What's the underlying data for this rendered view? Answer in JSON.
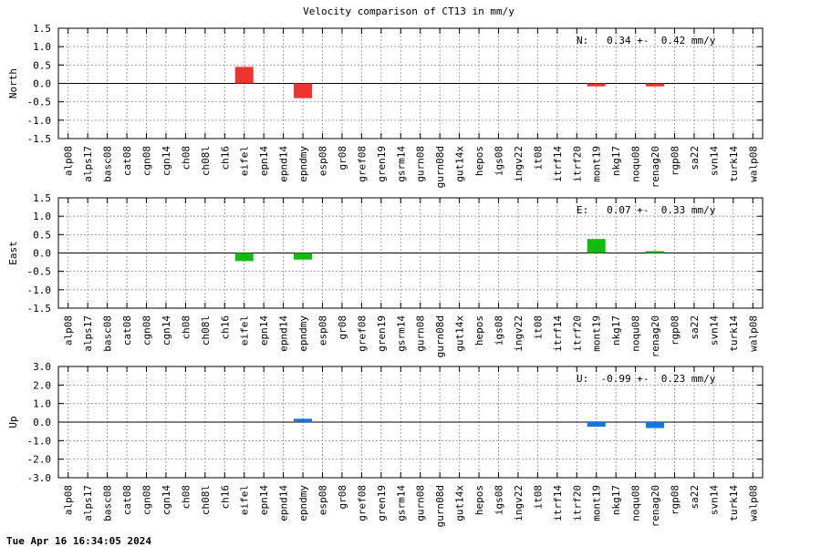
{
  "title": "Velocity comparison of CT13 in mm/y",
  "timestamp": "Tue Apr 16 16:34:05 2024",
  "chart_data": [
    {
      "type": "bar",
      "ylabel": "North",
      "ylim": [
        -1.5,
        1.5
      ],
      "yticks": [
        "1.5",
        "1.0",
        "0.5",
        "0.0",
        "-0.5",
        "-1.0",
        "-1.5"
      ],
      "grid": true,
      "color": "#ee3333",
      "annotation": "N:   0.34 +-  0.42 mm/y",
      "categories": [
        "alp08",
        "alps17",
        "basc08",
        "cat08",
        "cgn08",
        "cgn14",
        "ch08",
        "ch08l",
        "ch16",
        "eifel",
        "epn14",
        "epnd14",
        "epndmy",
        "esp08",
        "gr08",
        "gref08",
        "gren19",
        "gsrm14",
        "gurn08",
        "gurn08d",
        "gut14x",
        "hepos",
        "igs08",
        "ingv22",
        "it08",
        "itrf14",
        "itrf20",
        "mont19",
        "nkg17",
        "noqu08",
        "renag20",
        "rgp08",
        "sa22",
        "svn14",
        "turk14",
        "walp08"
      ],
      "values": [
        0,
        0,
        0,
        0,
        0,
        0,
        0,
        0,
        0,
        0.45,
        0,
        0,
        -0.4,
        0,
        0,
        0,
        0,
        0,
        0,
        0,
        0,
        0,
        0,
        0,
        0,
        0,
        0,
        -0.08,
        0,
        0,
        -0.08,
        0,
        0,
        0,
        0,
        0
      ]
    },
    {
      "type": "bar",
      "ylabel": "East",
      "ylim": [
        -1.5,
        1.5
      ],
      "yticks": [
        "1.5",
        "1.0",
        "0.5",
        "0.0",
        "-0.5",
        "-1.0",
        "-1.5"
      ],
      "grid": true,
      "color": "#11bb11",
      "annotation": "E:   0.07 +-  0.33 mm/y",
      "categories": [
        "alp08",
        "alps17",
        "basc08",
        "cat08",
        "cgn08",
        "cgn14",
        "ch08",
        "ch08l",
        "ch16",
        "eifel",
        "epn14",
        "epnd14",
        "epndmy",
        "esp08",
        "gr08",
        "gref08",
        "gren19",
        "gsrm14",
        "gurn08",
        "gurn08d",
        "gut14x",
        "hepos",
        "igs08",
        "ingv22",
        "it08",
        "itrf14",
        "itrf20",
        "mont19",
        "nkg17",
        "noqu08",
        "renag20",
        "rgp08",
        "sa22",
        "svn14",
        "turk14",
        "walp08"
      ],
      "values": [
        0,
        0,
        0,
        0,
        0,
        0,
        0,
        0,
        0,
        -0.22,
        0,
        0,
        -0.18,
        0,
        0,
        0,
        0,
        0,
        0,
        0,
        0,
        0,
        0,
        0,
        0,
        0,
        0,
        0.38,
        0,
        0,
        0.05,
        0,
        0,
        0,
        0,
        0
      ]
    },
    {
      "type": "bar",
      "ylabel": "Up",
      "ylim": [
        -3.0,
        3.0
      ],
      "yticks": [
        "3.0",
        "2.0",
        "1.0",
        "0.0",
        "-1.0",
        "-2.0",
        "-3.0"
      ],
      "grid": true,
      "color": "#1177dd",
      "annotation": "U:  -0.99 +-  0.23 mm/y",
      "categories": [
        "alp08",
        "alps17",
        "basc08",
        "cat08",
        "cgn08",
        "cgn14",
        "ch08",
        "ch08l",
        "ch16",
        "eifel",
        "epn14",
        "epnd14",
        "epndmy",
        "esp08",
        "gr08",
        "gref08",
        "gren19",
        "gsrm14",
        "gurn08",
        "gurn08d",
        "gut14x",
        "hepos",
        "igs08",
        "ingv22",
        "it08",
        "itrf14",
        "itrf20",
        "mont19",
        "nkg17",
        "noqu08",
        "renag20",
        "rgp08",
        "sa22",
        "svn14",
        "turk14",
        "walp08"
      ],
      "values": [
        0,
        0,
        0,
        0,
        0,
        0,
        0,
        0,
        0,
        0,
        0,
        0,
        0.18,
        0,
        0,
        0,
        0,
        0,
        0,
        0,
        0,
        0,
        0,
        0,
        0,
        0,
        0,
        -0.25,
        0,
        0,
        -0.32,
        0,
        0,
        0,
        0,
        0
      ]
    }
  ]
}
